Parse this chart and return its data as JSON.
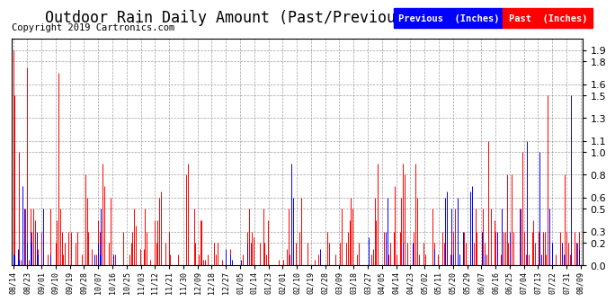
{
  "title": "Outdoor Rain Daily Amount (Past/Previous Year) 20190814",
  "copyright": "Copyright 2019 Cartronics.com",
  "legend_previous": "Previous  (Inches)",
  "legend_past": "Past  (Inches)",
  "ylim": [
    0.0,
    2.0
  ],
  "yticks": [
    0.0,
    0.2,
    0.3,
    0.5,
    0.6,
    0.8,
    1.0,
    1.1,
    1.3,
    1.5,
    1.6,
    1.8,
    1.9
  ],
  "color_previous": "#0000ff",
  "color_past": "#ff0000",
  "background_color": "#ffffff",
  "grid_color": "#888888",
  "title_fontsize": 12,
  "copyright_fontsize": 7.5,
  "legend_fontsize": 7.5,
  "x_labels": [
    "08/14",
    "08/23",
    "09/01",
    "09/10",
    "09/19",
    "09/28",
    "10/07",
    "10/16",
    "10/25",
    "11/03",
    "11/12",
    "11/21",
    "11/30",
    "12/09",
    "12/18",
    "12/27",
    "01/05",
    "01/14",
    "01/23",
    "02/01",
    "02/10",
    "02/19",
    "02/28",
    "03/09",
    "03/18",
    "03/27",
    "04/05",
    "04/14",
    "04/23",
    "05/02",
    "05/11",
    "05/20",
    "05/29",
    "06/07",
    "06/16",
    "06/25",
    "07/04",
    "07/13",
    "07/22",
    "07/31",
    "08/09"
  ],
  "n_days": 366,
  "past_rain": [
    1.9,
    1.5,
    0.0,
    0.1,
    1.0,
    0.05,
    0.0,
    0.0,
    0.5,
    1.75,
    0.05,
    0.5,
    0.3,
    0.5,
    0.4,
    0.05,
    0.15,
    0.0,
    0.3,
    0.1,
    0.0,
    0.0,
    0.1,
    0.0,
    0.5,
    0.0,
    0.0,
    0.2,
    0.4,
    1.7,
    0.5,
    0.3,
    0.1,
    0.2,
    0.0,
    0.3,
    0.0,
    0.3,
    0.0,
    0.0,
    0.2,
    0.3,
    0.0,
    0.0,
    0.1,
    0.0,
    0.8,
    0.6,
    0.3,
    0.0,
    0.15,
    0.0,
    0.0,
    0.1,
    0.4,
    0.3,
    0.4,
    0.9,
    0.7,
    0.0,
    0.0,
    0.2,
    0.6,
    0.0,
    0.0,
    0.1,
    0.0,
    0.0,
    0.0,
    0.0,
    0.3,
    0.0,
    0.0,
    0.0,
    0.1,
    0.2,
    0.3,
    0.5,
    0.35,
    0.0,
    0.0,
    0.15,
    0.0,
    0.15,
    0.5,
    0.3,
    0.0,
    0.05,
    0.0,
    0.0,
    0.4,
    0.2,
    0.4,
    0.6,
    0.65,
    0.0,
    0.0,
    0.2,
    0.0,
    0.3,
    0.1,
    0.0,
    0.0,
    0.0,
    0.0,
    0.1,
    0.0,
    0.0,
    0.0,
    0.0,
    0.8,
    0.9,
    0.0,
    0.0,
    0.0,
    0.5,
    0.2,
    0.0,
    0.1,
    0.4,
    0.4,
    0.05,
    0.05,
    0.0,
    0.1,
    0.0,
    0.0,
    0.0,
    0.2,
    0.1,
    0.2,
    0.0,
    0.0,
    0.05,
    0.0,
    0.0,
    0.0,
    0.0,
    0.15,
    0.0,
    0.0,
    0.0,
    0.0,
    0.0,
    0.0,
    0.0,
    0.1,
    0.0,
    0.0,
    0.3,
    0.5,
    0.2,
    0.3,
    0.25,
    0.0,
    0.0,
    0.0,
    0.2,
    0.0,
    0.5,
    0.2,
    0.1,
    0.4,
    0.0,
    0.0,
    0.0,
    0.0,
    0.0,
    0.0,
    0.05,
    0.0,
    0.0,
    0.05,
    0.0,
    0.15,
    0.5,
    0.1,
    0.0,
    0.0,
    0.0,
    0.2,
    0.0,
    0.3,
    0.6,
    0.0,
    0.0,
    0.0,
    0.2,
    0.0,
    0.0,
    0.0,
    0.0,
    0.05,
    0.0,
    0.1,
    0.0,
    0.0,
    0.0,
    0.0,
    0.0,
    0.3,
    0.2,
    0.0,
    0.0,
    0.0,
    0.1,
    0.0,
    0.0,
    0.2,
    0.5,
    0.0,
    0.0,
    0.2,
    0.3,
    0.4,
    0.6,
    0.5,
    0.0,
    0.0,
    0.1,
    0.2,
    0.0,
    0.0,
    0.0,
    0.0,
    0.0,
    0.0,
    0.0,
    0.1,
    0.15,
    0.6,
    0.4,
    0.9,
    0.0,
    0.0,
    0.0,
    0.3,
    0.2,
    0.0,
    0.1,
    0.2,
    0.0,
    0.3,
    0.7,
    0.1,
    0.0,
    0.3,
    0.6,
    0.9,
    0.8,
    0.0,
    0.2,
    0.0,
    0.0,
    0.0,
    0.3,
    0.9,
    0.6,
    0.1,
    0.0,
    0.0,
    0.2,
    0.1,
    0.0,
    0.0,
    0.0,
    0.0,
    0.5,
    0.2,
    0.0,
    0.1,
    0.0,
    0.0,
    0.3,
    0.2,
    0.0,
    0.3,
    0.0,
    0.1,
    0.0,
    0.3,
    0.5,
    0.0,
    0.2,
    0.1,
    0.0,
    0.0,
    0.3,
    0.2,
    0.0,
    0.0,
    0.0,
    0.0,
    0.2,
    0.5,
    0.3,
    0.0,
    0.0,
    0.3,
    0.5,
    0.2,
    0.1,
    1.1,
    0.0,
    0.5,
    0.0,
    0.4,
    0.3,
    0.0,
    0.0,
    0.1,
    0.5,
    0.3,
    0.3,
    0.8,
    0.2,
    0.0,
    0.8,
    0.3,
    0.0,
    0.0,
    0.0,
    0.5,
    0.2,
    1.0,
    0.3,
    0.1,
    0.3,
    0.1,
    0.0,
    0.3,
    0.4,
    0.2,
    0.0,
    0.3,
    0.0,
    0.0,
    0.3,
    0.3,
    0.1,
    1.5,
    0.0,
    0.0,
    0.2,
    0.0,
    0.1,
    0.0,
    0.0,
    0.3,
    0.2,
    0.1,
    0.8,
    0.3,
    0.2,
    0.1,
    0.0,
    0.0,
    0.3,
    0.0,
    0.2,
    0.3,
    0.0
  ],
  "previous_rain": [
    0.1,
    0.1,
    0.0,
    0.15,
    0.05,
    0.0,
    0.7,
    0.5,
    0.0,
    0.2,
    0.0,
    0.3,
    0.2,
    0.0,
    0.0,
    0.3,
    0.1,
    0.0,
    0.0,
    0.5,
    0.0,
    0.0,
    0.0,
    0.0,
    0.1,
    0.0,
    0.0,
    0.0,
    0.0,
    0.0,
    0.0,
    0.0,
    0.0,
    0.0,
    0.0,
    0.0,
    0.0,
    0.0,
    0.0,
    0.0,
    0.0,
    0.0,
    0.0,
    0.0,
    0.0,
    0.0,
    0.0,
    0.0,
    0.0,
    0.0,
    0.0,
    0.0,
    0.1,
    0.0,
    0.2,
    0.1,
    0.5,
    0.0,
    0.0,
    0.0,
    0.0,
    0.0,
    0.0,
    0.0,
    0.1,
    0.0,
    0.0,
    0.0,
    0.0,
    0.0,
    0.0,
    0.0,
    0.0,
    0.0,
    0.0,
    0.0,
    0.0,
    0.0,
    0.0,
    0.0,
    0.0,
    0.0,
    0.0,
    0.0,
    0.0,
    0.0,
    0.0,
    0.0,
    0.0,
    0.0,
    0.0,
    0.0,
    0.0,
    0.0,
    0.0,
    0.0,
    0.0,
    0.0,
    0.0,
    0.0,
    0.0,
    0.0,
    0.0,
    0.0,
    0.0,
    0.0,
    0.0,
    0.0,
    0.0,
    0.0,
    0.0,
    0.0,
    0.0,
    0.0,
    0.0,
    0.0,
    0.0,
    0.0,
    0.0,
    0.0,
    0.0,
    0.0,
    0.0,
    0.0,
    0.0,
    0.0,
    0.0,
    0.0,
    0.0,
    0.0,
    0.0,
    0.0,
    0.0,
    0.0,
    0.0,
    0.15,
    0.0,
    0.0,
    0.1,
    0.05,
    0.0,
    0.0,
    0.0,
    0.0,
    0.0,
    0.05,
    0.0,
    0.0,
    0.0,
    0.2,
    0.0,
    0.0,
    0.0,
    0.0,
    0.0,
    0.0,
    0.0,
    0.0,
    0.0,
    0.0,
    0.0,
    0.0,
    0.0,
    0.0,
    0.0,
    0.0,
    0.0,
    0.0,
    0.0,
    0.0,
    0.0,
    0.0,
    0.0,
    0.0,
    0.0,
    0.0,
    0.0,
    0.9,
    0.6,
    0.0,
    0.0,
    0.0,
    0.0,
    0.0,
    0.0,
    0.0,
    0.0,
    0.0,
    0.0,
    0.0,
    0.0,
    0.0,
    0.0,
    0.0,
    0.0,
    0.15,
    0.0,
    0.0,
    0.0,
    0.0,
    0.0,
    0.0,
    0.0,
    0.0,
    0.0,
    0.0,
    0.0,
    0.0,
    0.0,
    0.0,
    0.0,
    0.0,
    0.0,
    0.0,
    0.0,
    0.0,
    0.0,
    0.0,
    0.0,
    0.0,
    0.0,
    0.0,
    0.0,
    0.0,
    0.0,
    0.0,
    0.25,
    0.0,
    0.0,
    0.0,
    0.0,
    0.0,
    0.0,
    0.0,
    0.0,
    0.0,
    0.0,
    0.3,
    0.6,
    0.0,
    0.0,
    0.0,
    0.0,
    0.0,
    0.0,
    0.0,
    0.0,
    0.0,
    0.2,
    0.0,
    0.0,
    0.0,
    0.0,
    0.0,
    0.2,
    0.0,
    0.0,
    0.0,
    0.0,
    0.0,
    0.0,
    0.0,
    0.0,
    0.0,
    0.0,
    0.0,
    0.0,
    0.0,
    0.15,
    0.0,
    0.0,
    0.0,
    0.0,
    0.0,
    0.0,
    0.6,
    0.65,
    0.0,
    0.0,
    0.5,
    0.1,
    0.0,
    0.0,
    0.6,
    0.1,
    0.0,
    0.3,
    0.0,
    0.0,
    0.0,
    0.0,
    0.65,
    0.7,
    0.0,
    0.0,
    0.0,
    0.0,
    0.0,
    0.3,
    0.0,
    0.1,
    0.0,
    0.0,
    0.0,
    0.0,
    0.0,
    0.0,
    0.0,
    0.3,
    0.0,
    0.0,
    0.5,
    0.0,
    0.0,
    0.0,
    0.0,
    0.3,
    0.0,
    0.0,
    0.0,
    0.0,
    0.0,
    0.0,
    0.5,
    0.0,
    0.0,
    0.0,
    1.1,
    0.0,
    0.0,
    0.0,
    0.0,
    0.0,
    0.0,
    0.0,
    1.0,
    0.1,
    0.0,
    0.0,
    0.0,
    0.0,
    0.5,
    0.0,
    0.2,
    0.0,
    0.0,
    0.0,
    0.0,
    0.0,
    0.2,
    0.0,
    0.1,
    0.0,
    0.0,
    0.0,
    1.5,
    0.0,
    0.0,
    0.2,
    0.0,
    0.15,
    0.0,
    0.0,
    0.3,
    0.2
  ]
}
